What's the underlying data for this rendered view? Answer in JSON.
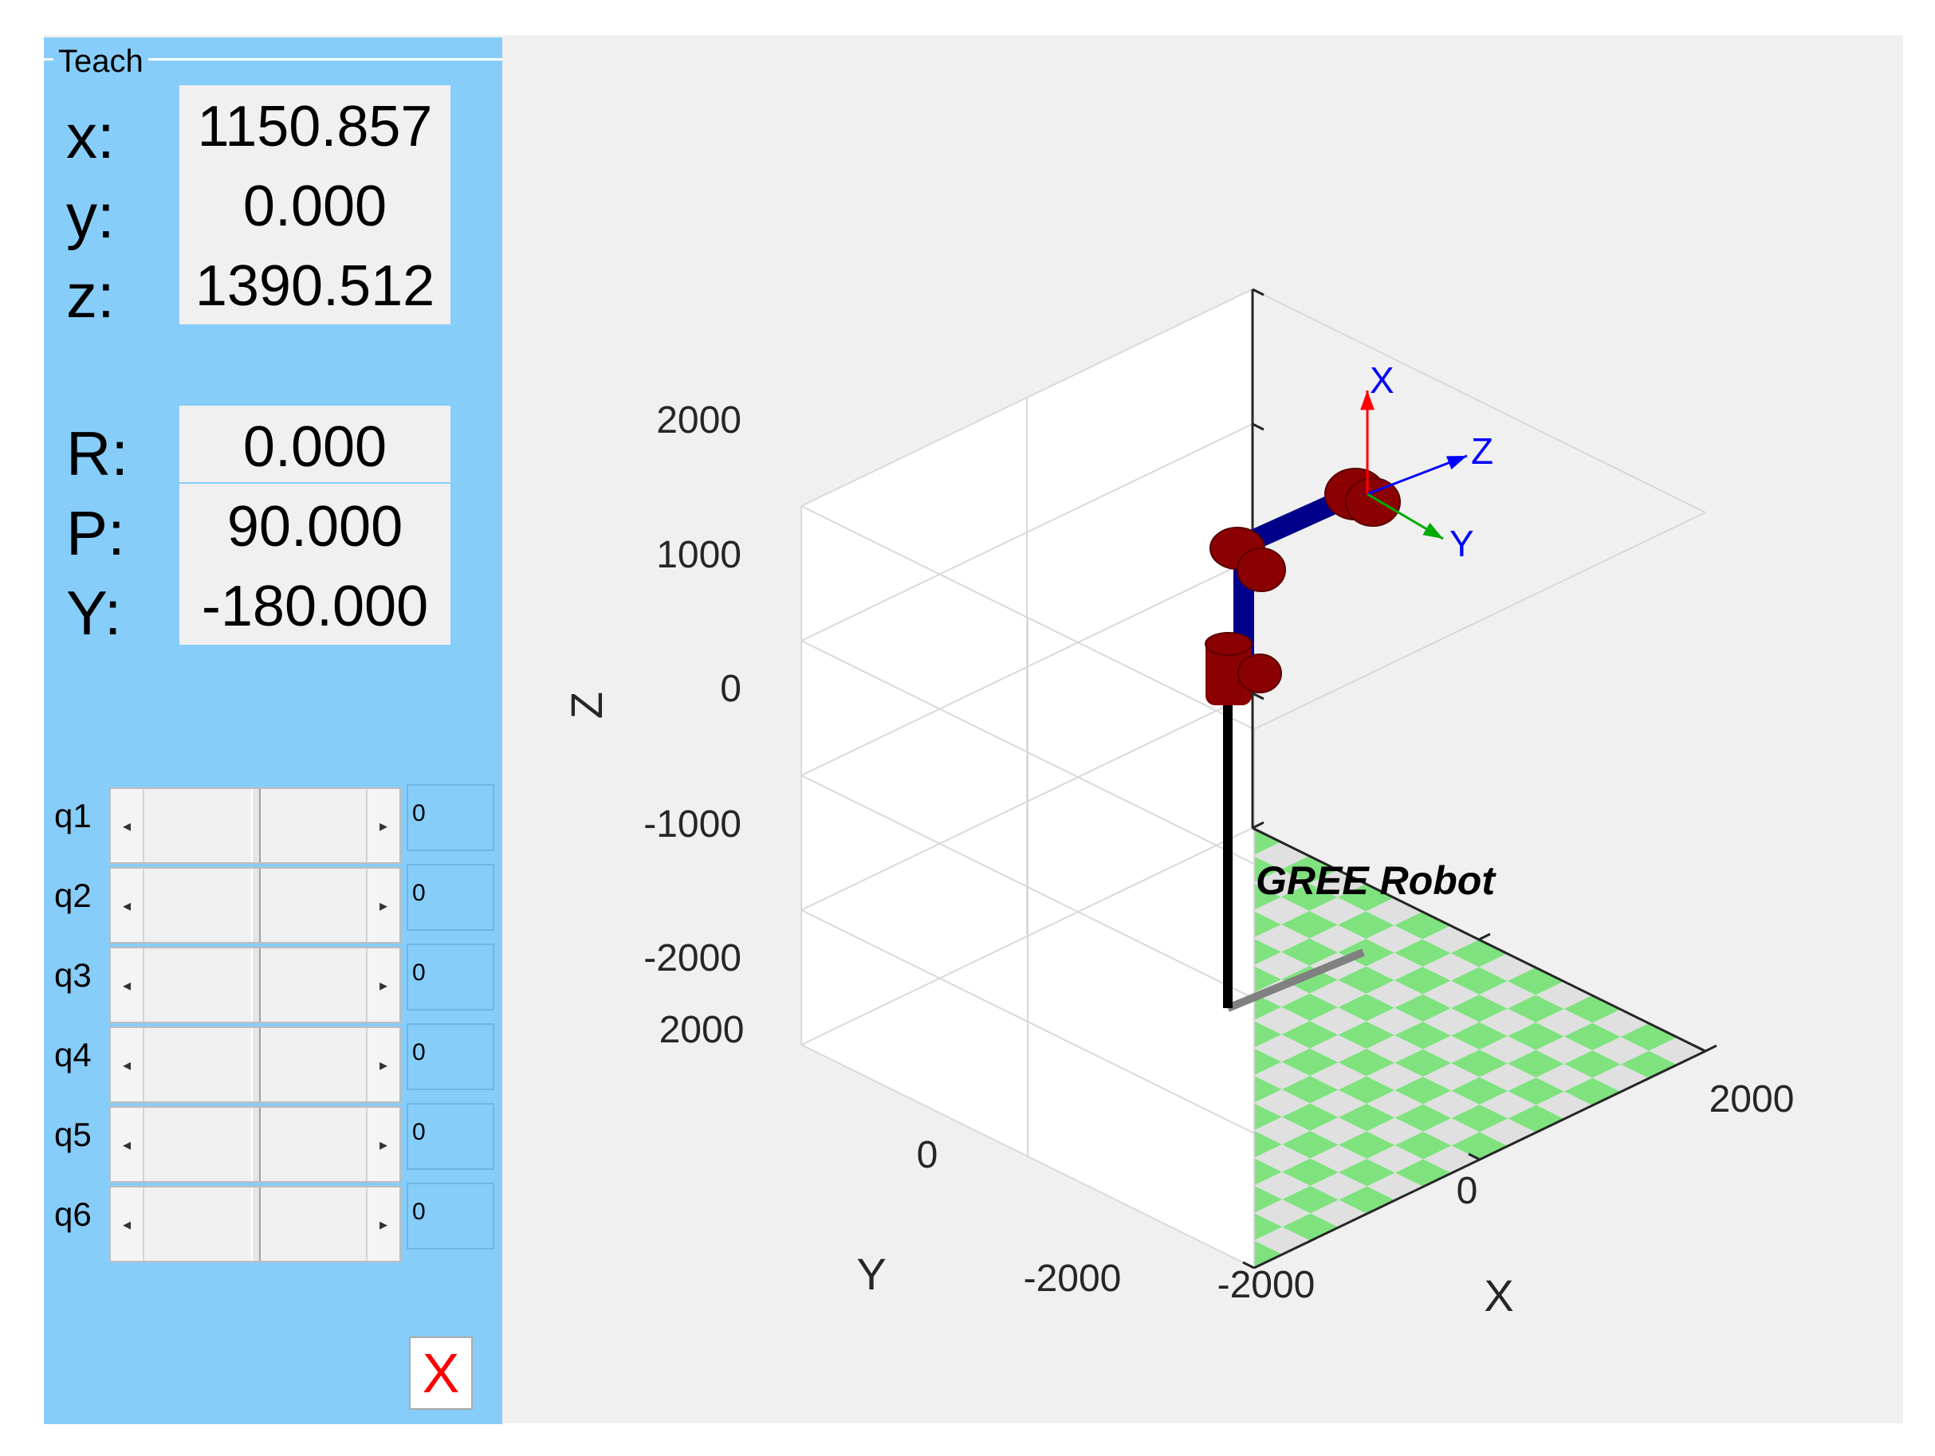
{
  "teach_panel": {
    "title": "Teach",
    "position": [
      {
        "label": "x:",
        "value": "1150.857"
      },
      {
        "label": "y:",
        "value": "0.000"
      },
      {
        "label": "z:",
        "value": "1390.512"
      }
    ],
    "orientation": [
      {
        "label": "R:",
        "value": "0.000"
      },
      {
        "label": "P:",
        "value": "90.000"
      },
      {
        "label": "Y:",
        "value": "-180.000"
      }
    ],
    "joints": [
      {
        "label": "q1",
        "value": "0",
        "slider_fraction": 0.5
      },
      {
        "label": "q2",
        "value": "0",
        "slider_fraction": 0.5
      },
      {
        "label": "q3",
        "value": "0",
        "slider_fraction": 0.5
      },
      {
        "label": "q4",
        "value": "0",
        "slider_fraction": 0.5
      },
      {
        "label": "q5",
        "value": "0",
        "slider_fraction": 0.5
      },
      {
        "label": "q6",
        "value": "0",
        "slider_fraction": 0.5
      }
    ],
    "close_label": "X",
    "close_color": "#ff0000",
    "panel_color": "#87cdf9"
  },
  "plot": {
    "robot_name": "GREE Robot",
    "axes": {
      "x_label": "X",
      "y_label": "Y",
      "z_label": "Z",
      "x_ticks": [
        "-2000",
        "0",
        "2000"
      ],
      "y_ticks": [
        "-2000",
        "0",
        "2000"
      ],
      "z_ticks": [
        "-2000",
        "-1000",
        "0",
        "1000",
        "2000"
      ],
      "xlim": [
        -2000,
        2000
      ],
      "ylim": [
        -2000,
        2000
      ],
      "zlim": [
        -2000,
        2000
      ],
      "grid": true
    },
    "tool_frame_labels": {
      "x": "X",
      "y": "Y",
      "z": "Z"
    },
    "colors": {
      "floor_light": "#e0e0e0",
      "floor_green": "#7fe27f",
      "joint_red": "#8b0000",
      "link_blue": "#00008b",
      "frame_x": "#ff0000",
      "frame_y": "#00aa00",
      "frame_z": "#0000ff"
    }
  }
}
